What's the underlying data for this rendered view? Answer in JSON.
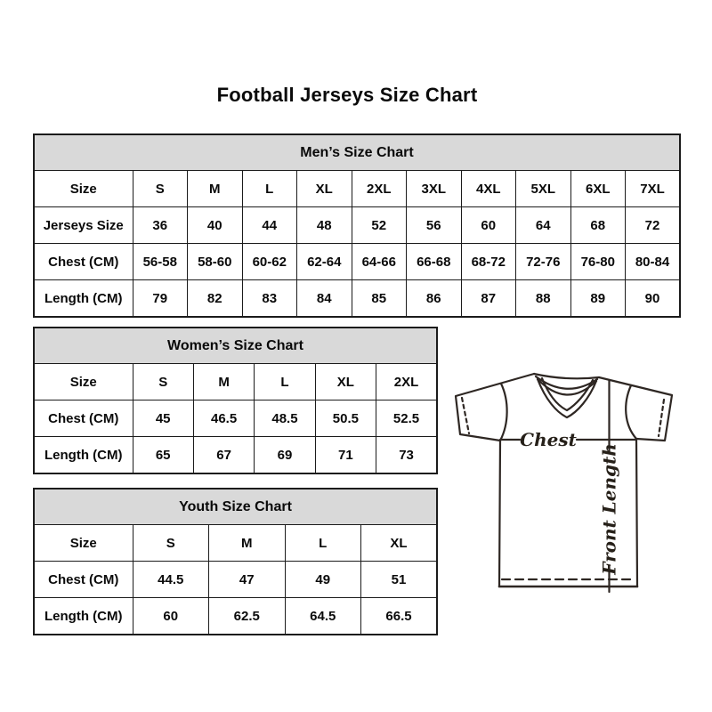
{
  "page": {
    "title": "Football Jerseys Size Chart"
  },
  "colors": {
    "header_fill": "#d9d9d9",
    "table_border": "#1b1b1b",
    "text": "#0a0a0a",
    "diagram_stroke": "#2e2723"
  },
  "tables": [
    {
      "id": "mens",
      "title": "Men’s Size Chart",
      "rows": [
        [
          "Size",
          "S",
          "M",
          "L",
          "XL",
          "2XL",
          "3XL",
          "4XL",
          "5XL",
          "6XL",
          "7XL"
        ],
        [
          "Jerseys Size",
          "36",
          "40",
          "44",
          "48",
          "52",
          "56",
          "60",
          "64",
          "68",
          "72"
        ],
        [
          "Chest (CM)",
          "56-58",
          "58-60",
          "60-62",
          "62-64",
          "64-66",
          "66-68",
          "68-72",
          "72-76",
          "76-80",
          "80-84"
        ],
        [
          "Length (CM)",
          "79",
          "82",
          "83",
          "84",
          "85",
          "86",
          "87",
          "88",
          "89",
          "90"
        ]
      ]
    },
    {
      "id": "womens",
      "title": "Women’s Size Chart",
      "rows": [
        [
          "Size",
          "S",
          "M",
          "L",
          "XL",
          "2XL"
        ],
        [
          "Chest (CM)",
          "45",
          "46.5",
          "48.5",
          "50.5",
          "52.5"
        ],
        [
          "Length (CM)",
          "65",
          "67",
          "69",
          "71",
          "73"
        ]
      ]
    },
    {
      "id": "youth",
      "title": "Youth Size Chart",
      "rows": [
        [
          "Size",
          "S",
          "M",
          "L",
          "XL"
        ],
        [
          "Chest (CM)",
          "44.5",
          "47",
          "49",
          "51"
        ],
        [
          "Length (CM)",
          "60",
          "62.5",
          "64.5",
          "66.5"
        ]
      ]
    }
  ],
  "diagram": {
    "chest_label": "Chest",
    "front_length_label": "Front Length"
  }
}
